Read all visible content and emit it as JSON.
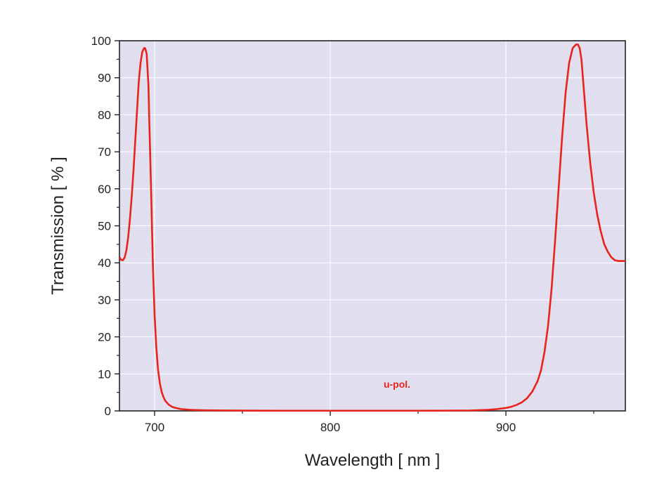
{
  "chart_data": {
    "type": "line",
    "xlabel": "Wavelength [ nm ]",
    "ylabel": "Transmission [ % ]",
    "xlim": [
      680,
      968
    ],
    "ylim": [
      0,
      100
    ],
    "x_ticks": [
      700,
      800,
      900
    ],
    "y_ticks": [
      0,
      10,
      20,
      30,
      40,
      50,
      60,
      70,
      80,
      90,
      100
    ],
    "grid": true,
    "background_color": "#e1def0",
    "grid_color": "#ffffff",
    "annotation": "u-pol.",
    "series": [
      {
        "color": "#e8231b",
        "x": [
          680,
          681,
          682,
          683,
          684,
          685,
          686,
          687,
          688,
          689,
          690,
          691,
          692,
          693,
          694,
          694.6,
          695.5,
          696.5,
          697,
          698,
          699,
          700,
          701,
          702,
          703,
          704,
          705,
          706,
          708,
          710,
          712,
          715,
          720,
          725,
          730,
          740,
          750,
          760,
          770,
          780,
          790,
          800,
          810,
          820,
          830,
          840,
          850,
          860,
          870,
          880,
          885,
          890,
          895,
          900,
          903,
          906,
          909,
          912,
          915,
          918,
          920,
          922,
          924,
          926,
          928,
          930,
          932,
          934,
          936,
          938,
          940,
          941,
          942,
          943,
          944,
          946,
          948,
          950,
          952,
          954,
          956,
          958,
          960,
          962,
          964,
          966,
          968
        ],
        "y": [
          41.5,
          40.8,
          40.7,
          41.5,
          43.5,
          47,
          52,
          58,
          65,
          73,
          81,
          89,
          94,
          97,
          98,
          98,
          96.5,
          88,
          78,
          60,
          40,
          26,
          17,
          11,
          7.5,
          5.2,
          3.8,
          2.8,
          1.7,
          1.1,
          0.8,
          0.5,
          0.3,
          0.2,
          0.15,
          0.1,
          0.08,
          0.06,
          0.05,
          0.05,
          0.05,
          0.05,
          0.05,
          0.05,
          0.05,
          0.05,
          0.05,
          0.06,
          0.08,
          0.12,
          0.2,
          0.3,
          0.5,
          0.8,
          1.1,
          1.6,
          2.3,
          3.4,
          5.2,
          8,
          11,
          16,
          23,
          33,
          46,
          60,
          74,
          86,
          94,
          98,
          99,
          99,
          98,
          95,
          89,
          77,
          67,
          59,
          53,
          48.5,
          45,
          43,
          41.5,
          40.7,
          40.5,
          40.5,
          40.5
        ]
      }
    ]
  }
}
